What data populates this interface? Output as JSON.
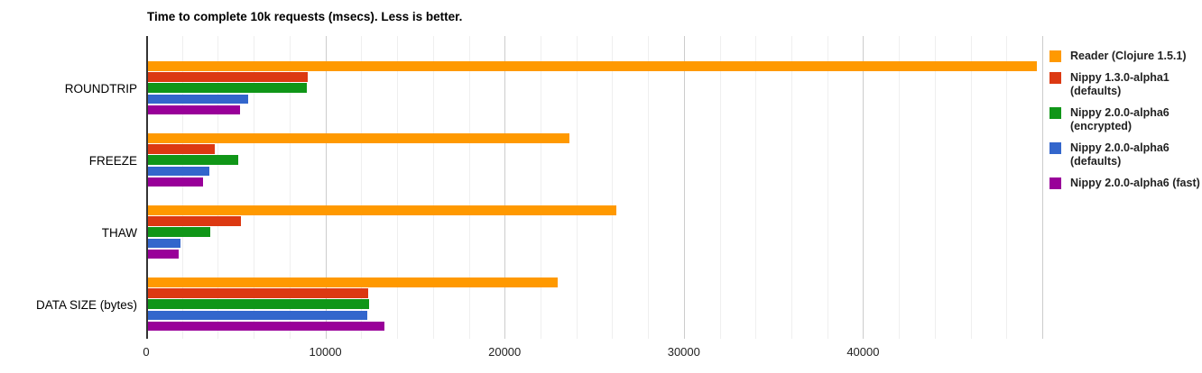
{
  "title": "Time to complete 10k requests (msecs). Less is better.",
  "chart_data": {
    "type": "bar",
    "orientation": "horizontal",
    "title": "Time to complete 10k requests (msecs). Less is better.",
    "categories": [
      "ROUNDTRIP",
      "FREEZE",
      "THAW",
      "DATA SIZE (bytes)"
    ],
    "series": [
      {
        "name": "Reader (Clojure 1.5.1)",
        "color": "#FF9900",
        "values": [
          49700,
          23600,
          26230,
          22950
        ]
      },
      {
        "name": "Nippy 1.3.0-alpha1 (defaults)",
        "color": "#DC3912",
        "values": [
          9030,
          3830,
          5260,
          12370
        ]
      },
      {
        "name": "Nippy 2.0.0-alpha6 (encrypted)",
        "color": "#109618",
        "values": [
          8980,
          5120,
          3570,
          12420
        ]
      },
      {
        "name": "Nippy 2.0.0-alpha6 (defaults)",
        "color": "#3366CC",
        "values": [
          5680,
          3510,
          1900,
          12320
        ]
      },
      {
        "name": "Nippy 2.0.0-alpha6 (fast)",
        "color": "#990099",
        "values": [
          5220,
          3160,
          1810,
          13290
        ]
      }
    ],
    "xlim": [
      0,
      50000
    ],
    "x_ticks": [
      "0",
      "10000",
      "20000",
      "30000",
      "40000"
    ],
    "x_tick_values": [
      0,
      10000,
      20000,
      30000,
      40000
    ],
    "minor_grid_step": 2000,
    "grid": true,
    "legend_position": "right",
    "legend": [
      {
        "color": "#FF9900",
        "lines": [
          "Reader (Clojure 1.5.1)"
        ]
      },
      {
        "color": "#DC3912",
        "lines": [
          "Nippy 1.3.0-alpha1",
          "(defaults)"
        ]
      },
      {
        "color": "#109618",
        "lines": [
          "Nippy 2.0.0-alpha6",
          "(encrypted)"
        ]
      },
      {
        "color": "#3366CC",
        "lines": [
          "Nippy 2.0.0-alpha6",
          "(defaults)"
        ]
      },
      {
        "color": "#990099",
        "lines": [
          "Nippy 2.0.0-alpha6 (fast)"
        ]
      }
    ]
  }
}
